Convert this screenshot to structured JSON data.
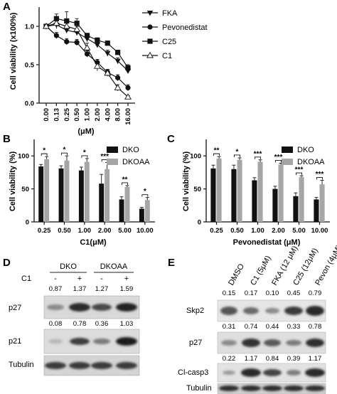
{
  "panels": {
    "A": {
      "letter": "A",
      "chart_data": {
        "type": "line",
        "xlabel": "(μM)",
        "ylabel": "Cell viability (x100%)",
        "categories": [
          "0.00",
          "0.13",
          "0.25",
          "0.50",
          "1.00",
          "2.00",
          "4.00",
          "8.00",
          "16.00"
        ],
        "ylim": [
          0,
          1.25
        ],
        "yticks": [
          "0.0",
          "0.5",
          "1.0"
        ],
        "legend_position": "top-right",
        "series": [
          {
            "name": "FKA",
            "marker": "triangle-down",
            "values": [
              1.0,
              1.02,
              0.95,
              0.92,
              0.84,
              0.76,
              0.65,
              0.55,
              0.42
            ],
            "err": [
              0,
              0.05,
              0.04,
              0.04,
              0.04,
              0.04,
              0.04,
              0.04,
              0.03
            ]
          },
          {
            "name": "Pevonedistat",
            "marker": "circle",
            "values": [
              1.0,
              0.88,
              0.8,
              0.79,
              0.64,
              0.53,
              0.4,
              0.33,
              0.2
            ],
            "err": [
              0,
              0.04,
              0.04,
              0.04,
              0.04,
              0.04,
              0.04,
              0.04,
              0.04
            ]
          },
          {
            "name": "C25",
            "marker": "square",
            "values": [
              1.0,
              1.1,
              1.07,
              1.04,
              0.88,
              0.82,
              0.78,
              0.66,
              0.46
            ],
            "err": [
              0,
              0.06,
              0.12,
              0.06,
              0.03,
              0.03,
              0.03,
              0.03,
              0.04
            ]
          },
          {
            "name": "C1",
            "marker": "triangle-up-open",
            "values": [
              1.0,
              1.04,
              1.0,
              0.96,
              0.72,
              0.48,
              0.39,
              0.2,
              0.08
            ],
            "err": [
              0,
              0.03,
              0.04,
              0.04,
              0.06,
              0.06,
              0.04,
              0.04,
              0.02
            ]
          }
        ]
      }
    },
    "B": {
      "letter": "B",
      "chart_data": {
        "type": "bar",
        "xlabel": "C1(μM)",
        "ylabel": "Cell viability (%)",
        "categories": [
          "0.25",
          "0.50",
          "1.00",
          "2.00",
          "5.00",
          "10.00"
        ],
        "ylim": [
          0,
          125
        ],
        "yticks": [
          "0",
          "50",
          "100"
        ],
        "legend_position": "top-right",
        "series": [
          {
            "name": "DKO",
            "color": "#111111",
            "values": [
              84,
              81,
              78,
              58,
              34,
              20
            ],
            "err": [
              3,
              4,
              5,
              14,
              4,
              2
            ]
          },
          {
            "name": "DKOAA",
            "color": "#a6a6a6",
            "values": [
              95,
              93,
              91,
              80,
              53,
              33
            ],
            "err": [
              4,
              7,
              5,
              10,
              2,
              4
            ]
          }
        ],
        "significance": [
          "*",
          "*",
          "*",
          "***",
          "**",
          "*"
        ]
      }
    },
    "C": {
      "letter": "C",
      "chart_data": {
        "type": "bar",
        "xlabel": "Pevonedistat (μM)",
        "ylabel": "Cell viability (%)",
        "categories": [
          "0.25",
          "0.50",
          "1.00",
          "2.00",
          "5.00",
          "10.00"
        ],
        "ylim": [
          0,
          125
        ],
        "yticks": [
          "0",
          "50",
          "100"
        ],
        "legend_position": "top-right",
        "series": [
          {
            "name": "DKO",
            "color": "#111111",
            "values": [
              81,
              80,
              63,
              50,
              39,
              34
            ],
            "err": [
              5,
              6,
              4,
              4,
              5,
              3
            ]
          },
          {
            "name": "DKOAA",
            "color": "#a6a6a6",
            "values": [
              96,
              94,
              91,
              87,
              68,
              57
            ],
            "err": [
              3,
              3,
              3,
              2,
              2,
              6
            ]
          }
        ],
        "significance": [
          "**",
          "*",
          "***",
          "***",
          "***",
          "***"
        ]
      }
    },
    "D": {
      "letter": "D",
      "groups": [
        "DKO",
        "DKOAA"
      ],
      "treatment_label": "C1",
      "lanes": [
        "-",
        "+",
        "-",
        "+"
      ],
      "p27_values": [
        "0.87",
        "1.37",
        "1.27",
        "1.59"
      ],
      "p21_values": [
        "0.08",
        "0.78",
        "0.36",
        "1.03"
      ],
      "rows": [
        "p27",
        "p21",
        "Tubulin"
      ]
    },
    "E": {
      "letter": "E",
      "lanes": [
        "DMSO",
        "C1 (5μM)",
        "FKA (12 μM)",
        "C25 (12μM)",
        "Pevon (4μM)"
      ],
      "skp2_values": [
        "0.15",
        "0.17",
        "0.10",
        "0.45",
        "0.79"
      ],
      "p27_values": [
        "0.31",
        "0.74",
        "0.44",
        "0.33",
        "0.78"
      ],
      "clcasp3_values": [
        "0.22",
        "1.17",
        "0.84",
        "0.39",
        "1.17"
      ],
      "rows": [
        "Skp2",
        "p27",
        "Cl-casp3",
        "Tubulin"
      ]
    }
  }
}
